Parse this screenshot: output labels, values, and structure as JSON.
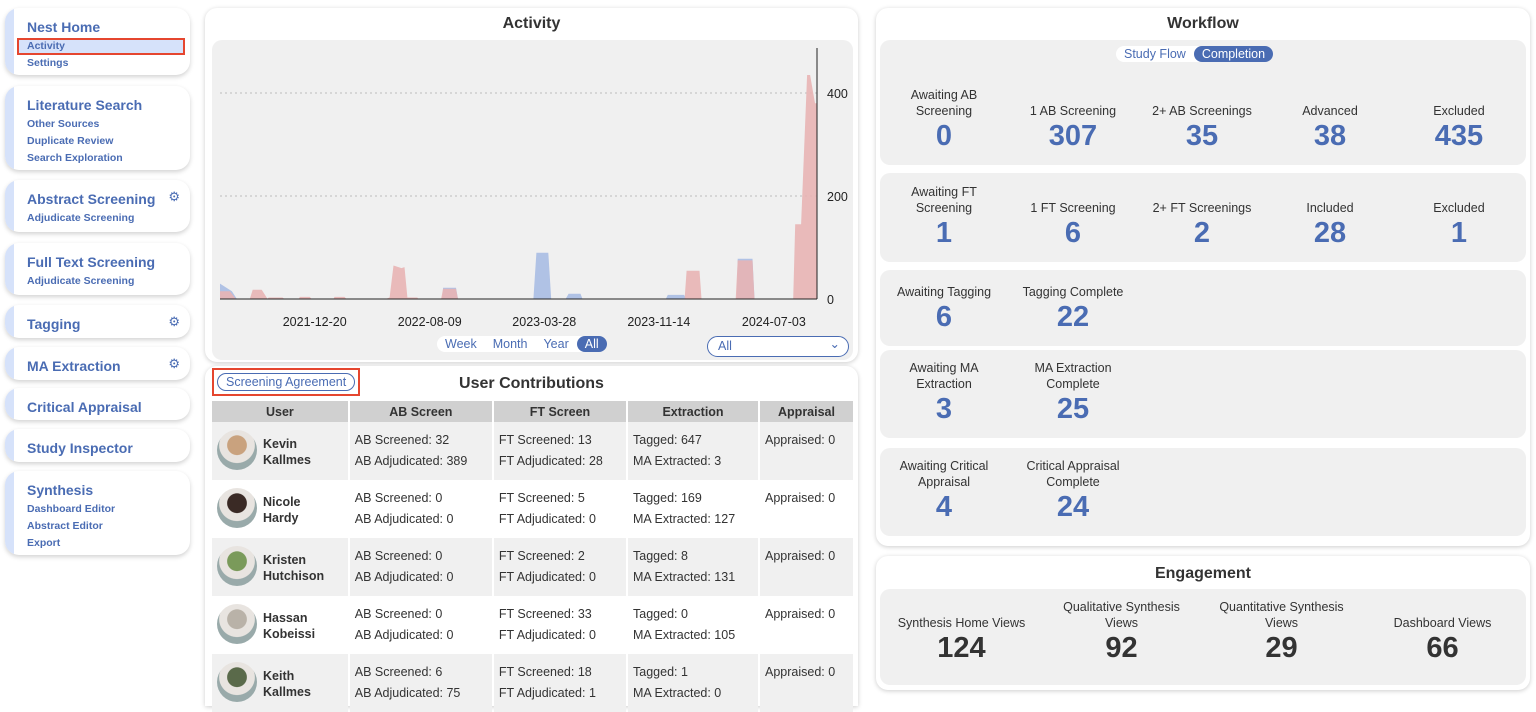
{
  "sidebar": [
    {
      "title": "Nest Home",
      "items": [
        "Activity",
        "Settings"
      ],
      "active": "Activity"
    },
    {
      "title": "Literature Search",
      "items": [
        "Other Sources",
        "Duplicate Review",
        "Search Exploration"
      ]
    },
    {
      "title": "Abstract Screening",
      "items": [
        "Adjudicate Screening"
      ],
      "gear": true
    },
    {
      "title": "Full Text Screening",
      "items": [
        "Adjudicate Screening"
      ]
    },
    {
      "title": "Tagging",
      "items": [],
      "gear": true
    },
    {
      "title": "MA Extraction",
      "items": [],
      "gear": true
    },
    {
      "title": "Critical Appraisal",
      "items": []
    },
    {
      "title": "Study Inspector",
      "items": []
    },
    {
      "title": "Synthesis",
      "items": [
        "Dashboard Editor",
        "Abstract Editor",
        "Export"
      ]
    }
  ],
  "activity": {
    "title": "Activity",
    "ranges": [
      "Week",
      "Month",
      "Year",
      "All"
    ],
    "active_range": "All",
    "filter_value": "All"
  },
  "chart_data": {
    "type": "area",
    "title": "Activity",
    "y_ticks": [
      0,
      200,
      400
    ],
    "ylim": [
      0,
      487
    ],
    "x_ticks": [
      "2021-12-20",
      "2022-08-09",
      "2023-03-28",
      "2023-11-14",
      "2024-07-03"
    ],
    "xlim": [
      "2021-06-12",
      "2024-09-28"
    ],
    "grid": "horizontal dotted",
    "colors": {
      "pink": "#e8b4b4",
      "blue": "#a9bde3"
    },
    "series": [
      {
        "color": "blue",
        "points": [
          [
            "2021-06-12",
            30
          ],
          [
            "2021-07-06",
            15
          ],
          [
            "2021-07-16",
            0
          ],
          [
            "2022-09-03",
            0
          ],
          [
            "2022-09-05",
            22
          ],
          [
            "2022-10-01",
            22
          ],
          [
            "2022-10-05",
            0
          ],
          [
            "2023-03-06",
            0
          ],
          [
            "2023-03-12",
            90
          ],
          [
            "2023-04-05",
            90
          ],
          [
            "2023-04-11",
            0
          ],
          [
            "2023-05-10",
            0
          ],
          [
            "2023-05-16",
            10
          ],
          [
            "2023-06-09",
            10
          ],
          [
            "2023-06-13",
            0
          ],
          [
            "2023-11-28",
            0
          ],
          [
            "2023-12-02",
            8
          ],
          [
            "2024-01-04",
            8
          ],
          [
            "2024-01-08",
            0
          ],
          [
            "2024-04-19",
            0
          ],
          [
            "2024-04-21",
            78
          ],
          [
            "2024-05-21",
            78
          ],
          [
            "2024-05-25",
            0
          ],
          [
            "2024-09-28",
            0
          ]
        ]
      },
      {
        "color": "pink",
        "points": [
          [
            "2021-06-12",
            15
          ],
          [
            "2021-07-02",
            15
          ],
          [
            "2021-07-14",
            0
          ],
          [
            "2021-08-11",
            0
          ],
          [
            "2021-08-17",
            18
          ],
          [
            "2021-09-04",
            18
          ],
          [
            "2021-09-16",
            0
          ],
          [
            "2021-09-18",
            3
          ],
          [
            "2021-10-16",
            3
          ],
          [
            "2021-10-20",
            0
          ],
          [
            "2021-11-18",
            0
          ],
          [
            "2021-11-20",
            4
          ],
          [
            "2021-12-10",
            4
          ],
          [
            "2021-12-14",
            0
          ],
          [
            "2022-01-27",
            0
          ],
          [
            "2022-01-29",
            4
          ],
          [
            "2022-02-18",
            4
          ],
          [
            "2022-02-22",
            0
          ],
          [
            "2022-05-12",
            0
          ],
          [
            "2022-05-20",
            3
          ],
          [
            "2022-05-28",
            65
          ],
          [
            "2022-06-13",
            60
          ],
          [
            "2022-06-19",
            62
          ],
          [
            "2022-06-25",
            3
          ],
          [
            "2022-07-15",
            3
          ],
          [
            "2022-07-17",
            0
          ],
          [
            "2022-09-01",
            0
          ],
          [
            "2022-09-05",
            20
          ],
          [
            "2022-10-01",
            20
          ],
          [
            "2022-10-05",
            0
          ],
          [
            "2024-01-05",
            0
          ],
          [
            "2024-01-09",
            55
          ],
          [
            "2024-02-04",
            55
          ],
          [
            "2024-02-08",
            0
          ],
          [
            "2024-04-17",
            0
          ],
          [
            "2024-04-21",
            75
          ],
          [
            "2024-05-21",
            75
          ],
          [
            "2024-05-25",
            0
          ],
          [
            "2024-08-11",
            0
          ],
          [
            "2024-08-15",
            145
          ],
          [
            "2024-08-27",
            145
          ],
          [
            "2024-09-08",
            435
          ],
          [
            "2024-09-14",
            435
          ],
          [
            "2024-09-24",
            380
          ],
          [
            "2024-09-28",
            380
          ]
        ]
      }
    ]
  },
  "contributions": {
    "title": "User Contributions",
    "agreement_button": "Screening Agreement",
    "columns": [
      "User",
      "AB Screen",
      "FT Screen",
      "Extraction",
      "Appraisal"
    ],
    "rows": [
      {
        "first": "Kevin",
        "last": "Kallmes",
        "ab1": "AB Screened: 32",
        "ab2": "AB Adjudicated: 389",
        "ft1": "FT Screened: 13",
        "ft2": "FT Adjudicated: 28",
        "ex1": "Tagged: 647",
        "ex2": "MA Extracted: 3",
        "ap": "Appraised: 0"
      },
      {
        "first": "Nicole",
        "last": "Hardy",
        "ab1": "AB Screened: 0",
        "ab2": "AB Adjudicated: 0",
        "ft1": "FT Screened: 5",
        "ft2": "FT Adjudicated: 0",
        "ex1": "Tagged: 169",
        "ex2": "MA Extracted: 127",
        "ap": "Appraised: 0"
      },
      {
        "first": "Kristen",
        "last": "Hutchison",
        "ab1": "AB Screened: 0",
        "ab2": "AB Adjudicated: 0",
        "ft1": "FT Screened: 2",
        "ft2": "FT Adjudicated: 0",
        "ex1": "Tagged: 8",
        "ex2": "MA Extracted: 131",
        "ap": "Appraised: 0"
      },
      {
        "first": "Hassan",
        "last": "Kobeissi",
        "ab1": "AB Screened: 0",
        "ab2": "AB Adjudicated: 0",
        "ft1": "FT Screened: 33",
        "ft2": "FT Adjudicated: 0",
        "ex1": "Tagged: 0",
        "ex2": "MA Extracted: 105",
        "ap": "Appraised: 0"
      },
      {
        "first": "Keith",
        "last": "Kallmes",
        "ab1": "AB Screened: 6",
        "ab2": "AB Adjudicated: 75",
        "ft1": "FT Screened: 18",
        "ft2": "FT Adjudicated: 1",
        "ex1": "Tagged: 1",
        "ex2": "MA Extracted: 0",
        "ap": "Appraised: 0"
      }
    ]
  },
  "workflow": {
    "title": "Workflow",
    "toggle": [
      "Study Flow",
      "Completion"
    ],
    "active_toggle": "Completion",
    "sections": [
      [
        {
          "label": "Awaiting AB Screening",
          "value": "0"
        },
        {
          "label": "1 AB Screening",
          "value": "307"
        },
        {
          "label": "2+ AB Screenings",
          "value": "35"
        },
        {
          "label": "Advanced",
          "value": "38"
        },
        {
          "label": "Excluded",
          "value": "435"
        }
      ],
      [
        {
          "label": "Awaiting FT Screening",
          "value": "1"
        },
        {
          "label": "1 FT Screening",
          "value": "6"
        },
        {
          "label": "2+ FT Screenings",
          "value": "2"
        },
        {
          "label": "Included",
          "value": "28"
        },
        {
          "label": "Excluded",
          "value": "1"
        }
      ],
      [
        {
          "label": "Awaiting Tagging",
          "value": "6"
        },
        {
          "label": "Tagging Complete",
          "value": "22"
        }
      ],
      [
        {
          "label": "Awaiting MA Extraction",
          "value": "3"
        },
        {
          "label": "MA Extraction Complete",
          "value": "25"
        }
      ],
      [
        {
          "label": "Awaiting Critical Appraisal",
          "value": "4"
        },
        {
          "label": "Critical Appraisal Complete",
          "value": "24"
        }
      ]
    ]
  },
  "engagement": {
    "title": "Engagement",
    "stats": [
      {
        "label": "Synthesis Home Views",
        "value": "124"
      },
      {
        "label": "Qualitative Synthesis Views",
        "value": "92"
      },
      {
        "label": "Quantitative Synthesis Views",
        "value": "29"
      },
      {
        "label": "Dashboard Views",
        "value": "66"
      }
    ]
  }
}
